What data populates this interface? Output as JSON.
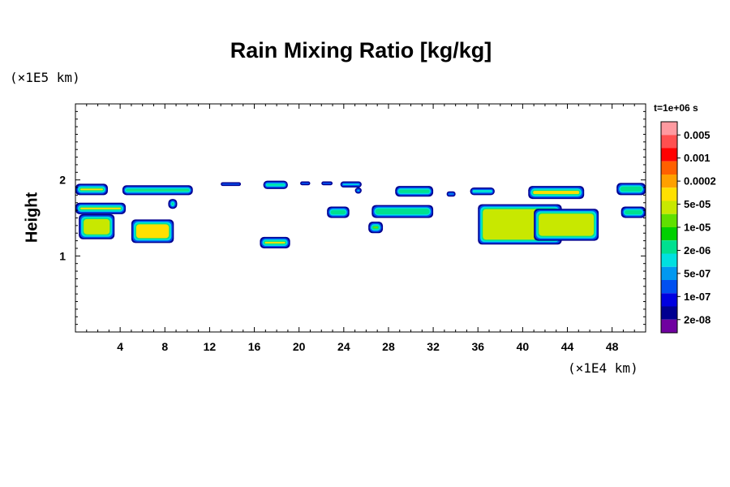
{
  "chart_data": {
    "type": "heatmap",
    "title": "Rain Mixing Ratio [kg/kg]",
    "ylabel": "Height",
    "xlabel": "",
    "x_unit": "(×1E4 km)",
    "y_unit": "(×1E5 km)",
    "time_label": "t=1e+06 s",
    "x_ticks": [
      4,
      8,
      12,
      16,
      20,
      24,
      28,
      32,
      36,
      40,
      44,
      48
    ],
    "y_ticks": [
      1,
      2
    ],
    "xlim": [
      0,
      51
    ],
    "ylim": [
      0,
      3
    ],
    "colorbar": {
      "labels": [
        "0.005",
        "0.001",
        "0.0002",
        "5e-05",
        "1e-05",
        "2e-06",
        "5e-07",
        "1e-07",
        "2e-08"
      ],
      "colors": [
        "#ff9aa0",
        "#ff5050",
        "#ff0000",
        "#ff6000",
        "#ffa000",
        "#ffe000",
        "#c8e800",
        "#60e000",
        "#00d000",
        "#00e090",
        "#00e0e0",
        "#0098f0",
        "#0050f0",
        "#0000e0",
        "#000090",
        "#7000a0"
      ]
    },
    "bands": [
      {
        "x0": 0.0,
        "x1": 2.9,
        "y0": 1.8,
        "y1": 1.95,
        "fill": "#ffe000"
      },
      {
        "x0": 4.2,
        "x1": 10.5,
        "y0": 1.8,
        "y1": 1.93,
        "fill": "#ffe000"
      },
      {
        "x0": 0.0,
        "x1": 4.5,
        "y0": 1.55,
        "y1": 1.7,
        "fill": "#ffe000"
      },
      {
        "x0": 0.3,
        "x1": 3.5,
        "y0": 1.22,
        "y1": 1.55,
        "fill": "#c8e800"
      },
      {
        "x0": 5.0,
        "x1": 8.8,
        "y0": 1.17,
        "y1": 1.48,
        "fill": "#ffe000"
      },
      {
        "x0": 8.3,
        "x1": 9.1,
        "y0": 1.62,
        "y1": 1.75,
        "fill": "#00e090"
      },
      {
        "x0": 13.0,
        "x1": 14.8,
        "y0": 1.92,
        "y1": 1.97,
        "fill": "#0050f0"
      },
      {
        "x0": 16.8,
        "x1": 19.0,
        "y0": 1.88,
        "y1": 1.99,
        "fill": "#00e0e0"
      },
      {
        "x0": 20.1,
        "x1": 21.0,
        "y0": 1.93,
        "y1": 1.98,
        "fill": "#0050f0"
      },
      {
        "x0": 22.0,
        "x1": 23.0,
        "y0": 1.93,
        "y1": 1.98,
        "fill": "#0050f0"
      },
      {
        "x0": 23.7,
        "x1": 25.6,
        "y0": 1.9,
        "y1": 1.98,
        "fill": "#0050f0"
      },
      {
        "x0": 25.0,
        "x1": 25.6,
        "y0": 1.82,
        "y1": 1.9,
        "fill": "#00e090"
      },
      {
        "x0": 16.5,
        "x1": 19.2,
        "y0": 1.1,
        "y1": 1.25,
        "fill": "#ffe000"
      },
      {
        "x0": 22.5,
        "x1": 24.5,
        "y0": 1.5,
        "y1": 1.65,
        "fill": "#00e090"
      },
      {
        "x0": 26.2,
        "x1": 27.5,
        "y0": 1.3,
        "y1": 1.45,
        "fill": "#60e000"
      },
      {
        "x0": 26.5,
        "x1": 32.0,
        "y0": 1.5,
        "y1": 1.67,
        "fill": "#00e090"
      },
      {
        "x0": 28.6,
        "x1": 32.0,
        "y0": 1.78,
        "y1": 1.92,
        "fill": "#00e090"
      },
      {
        "x0": 33.2,
        "x1": 34.0,
        "y0": 1.78,
        "y1": 1.85,
        "fill": "#00e090"
      },
      {
        "x0": 35.3,
        "x1": 37.5,
        "y0": 1.8,
        "y1": 1.9,
        "fill": "#00e090"
      },
      {
        "x0": 36.0,
        "x1": 43.5,
        "y0": 1.15,
        "y1": 1.68,
        "fill": "#c8e800"
      },
      {
        "x0": 41.0,
        "x1": 46.8,
        "y0": 1.2,
        "y1": 1.62,
        "fill": "#c8e800"
      },
      {
        "x0": 40.5,
        "x1": 45.5,
        "y0": 1.75,
        "y1": 1.92,
        "fill": "#ffe000"
      },
      {
        "x0": 48.4,
        "x1": 51.0,
        "y0": 1.8,
        "y1": 1.96,
        "fill": "#00e090"
      },
      {
        "x0": 48.8,
        "x1": 51.0,
        "y0": 1.5,
        "y1": 1.65,
        "fill": "#00e090"
      }
    ]
  }
}
